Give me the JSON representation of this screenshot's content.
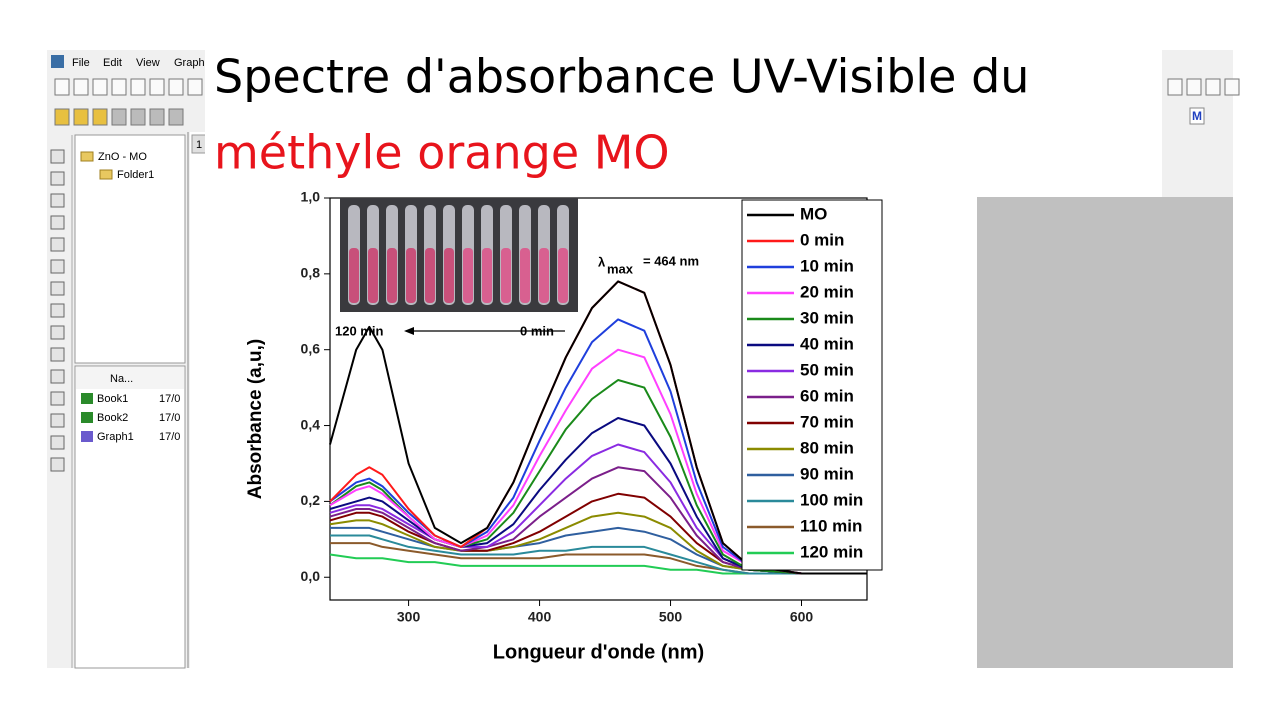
{
  "app": {
    "menu": [
      "File",
      "Edit",
      "View",
      "Graph"
    ],
    "project": {
      "root": "ZnO - MO",
      "folder": "Folder1"
    },
    "list_header": "Na...",
    "files": [
      {
        "name": "Book1",
        "date": "17/0"
      },
      {
        "name": "Book2",
        "date": "17/0"
      },
      {
        "name": "Graph1",
        "date": "17/0"
      }
    ],
    "tab": "1"
  },
  "slide": {
    "title_line1": "Spectre d'absorbance UV-Visible du",
    "title_line2": "méthyle orange MO"
  },
  "chart_data": {
    "type": "line",
    "xlabel": "Longueur d'onde (nm)",
    "ylabel": "Absorbance (a,u,)",
    "annotations": [
      "120 min",
      "0 min"
    ],
    "lambda_label": {
      "symbol": "λ",
      "subscript": "max",
      "text": "= 464 nm"
    },
    "xlim": [
      240,
      650
    ],
    "ylim": [
      -0.06,
      1.0
    ],
    "xticks": [
      300,
      400,
      500,
      600
    ],
    "yticks": [
      {
        "value": 0,
        "label": "0,0"
      },
      {
        "value": 0.2,
        "label": "0,2"
      },
      {
        "value": 0.4,
        "label": "0,4"
      },
      {
        "value": 0.6,
        "label": "0,6"
      },
      {
        "value": 0.8,
        "label": "0,8"
      },
      {
        "value": 1.0,
        "label": "1,0"
      }
    ],
    "legend": "upper right",
    "x": [
      240,
      260,
      270,
      280,
      300,
      320,
      340,
      360,
      380,
      400,
      420,
      440,
      460,
      480,
      500,
      520,
      540,
      560,
      600,
      650
    ],
    "series": [
      {
        "name": "MO",
        "color": "#000000",
        "values": [
          0.35,
          0.6,
          0.66,
          0.6,
          0.3,
          0.13,
          0.09,
          0.13,
          0.25,
          0.42,
          0.58,
          0.71,
          0.78,
          0.75,
          0.56,
          0.29,
          0.09,
          0.03,
          0.01,
          0.01
        ]
      },
      {
        "name": "0 min",
        "color": "#ff1a1a",
        "values": [
          0.2,
          0.27,
          0.29,
          0.27,
          0.18,
          0.11,
          0.08,
          0.13,
          0.25,
          0.42,
          0.58,
          0.71,
          0.78,
          0.75,
          0.56,
          0.29,
          0.09,
          0.03,
          0.01,
          0.01
        ]
      },
      {
        "name": "10 min",
        "color": "#1f3fdc",
        "values": [
          0.2,
          0.25,
          0.26,
          0.24,
          0.17,
          0.11,
          0.08,
          0.12,
          0.21,
          0.36,
          0.5,
          0.62,
          0.68,
          0.65,
          0.49,
          0.25,
          0.08,
          0.03,
          0.01,
          0.01
        ]
      },
      {
        "name": "20 min",
        "color": "#ff40ff",
        "values": [
          0.19,
          0.23,
          0.24,
          0.22,
          0.16,
          0.1,
          0.08,
          0.11,
          0.19,
          0.32,
          0.44,
          0.55,
          0.6,
          0.58,
          0.43,
          0.22,
          0.07,
          0.03,
          0.01,
          0.01
        ]
      },
      {
        "name": "30 min",
        "color": "#1a8a1a",
        "values": [
          0.19,
          0.24,
          0.25,
          0.23,
          0.16,
          0.1,
          0.08,
          0.1,
          0.17,
          0.28,
          0.39,
          0.47,
          0.52,
          0.5,
          0.37,
          0.19,
          0.06,
          0.02,
          0.01,
          0.01
        ]
      },
      {
        "name": "40 min",
        "color": "#0a0a80",
        "values": [
          0.18,
          0.2,
          0.21,
          0.2,
          0.15,
          0.1,
          0.08,
          0.09,
          0.14,
          0.23,
          0.31,
          0.38,
          0.42,
          0.4,
          0.3,
          0.16,
          0.05,
          0.02,
          0.01,
          0.01
        ]
      },
      {
        "name": "50 min",
        "color": "#8a2be2",
        "values": [
          0.17,
          0.19,
          0.19,
          0.18,
          0.14,
          0.1,
          0.08,
          0.08,
          0.12,
          0.19,
          0.26,
          0.32,
          0.35,
          0.33,
          0.25,
          0.13,
          0.05,
          0.02,
          0.01,
          0.01
        ]
      },
      {
        "name": "60 min",
        "color": "#7b1f8a",
        "values": [
          0.16,
          0.18,
          0.18,
          0.17,
          0.13,
          0.09,
          0.07,
          0.08,
          0.1,
          0.16,
          0.21,
          0.26,
          0.29,
          0.28,
          0.21,
          0.11,
          0.04,
          0.02,
          0.01,
          0.01
        ]
      },
      {
        "name": "70 min",
        "color": "#800000",
        "values": [
          0.15,
          0.17,
          0.17,
          0.16,
          0.12,
          0.09,
          0.07,
          0.07,
          0.09,
          0.12,
          0.16,
          0.2,
          0.22,
          0.21,
          0.16,
          0.09,
          0.04,
          0.02,
          0.01,
          0.01
        ]
      },
      {
        "name": "80 min",
        "color": "#8b8b00",
        "values": [
          0.14,
          0.15,
          0.15,
          0.14,
          0.11,
          0.08,
          0.07,
          0.07,
          0.08,
          0.1,
          0.13,
          0.16,
          0.17,
          0.16,
          0.13,
          0.07,
          0.03,
          0.02,
          0.01,
          0.01
        ]
      },
      {
        "name": "90 min",
        "color": "#2f5f9f",
        "values": [
          0.13,
          0.13,
          0.13,
          0.12,
          0.1,
          0.08,
          0.07,
          0.07,
          0.08,
          0.09,
          0.11,
          0.12,
          0.13,
          0.12,
          0.1,
          0.06,
          0.03,
          0.02,
          0.01,
          0.01
        ]
      },
      {
        "name": "100 min",
        "color": "#2a8a9a",
        "values": [
          0.11,
          0.11,
          0.11,
          0.1,
          0.08,
          0.07,
          0.06,
          0.06,
          0.06,
          0.07,
          0.07,
          0.08,
          0.08,
          0.08,
          0.06,
          0.04,
          0.02,
          0.01,
          0.01,
          0.01
        ]
      },
      {
        "name": "110 min",
        "color": "#8b5a2b",
        "values": [
          0.09,
          0.09,
          0.09,
          0.08,
          0.07,
          0.06,
          0.05,
          0.05,
          0.05,
          0.05,
          0.06,
          0.06,
          0.06,
          0.06,
          0.05,
          0.03,
          0.02,
          0.01,
          0.01,
          0.01
        ]
      },
      {
        "name": "120 min",
        "color": "#22cc55",
        "values": [
          0.06,
          0.05,
          0.05,
          0.05,
          0.04,
          0.04,
          0.03,
          0.03,
          0.03,
          0.03,
          0.03,
          0.03,
          0.03,
          0.03,
          0.02,
          0.02,
          0.01,
          0.01,
          0.01,
          0.01
        ]
      }
    ]
  }
}
